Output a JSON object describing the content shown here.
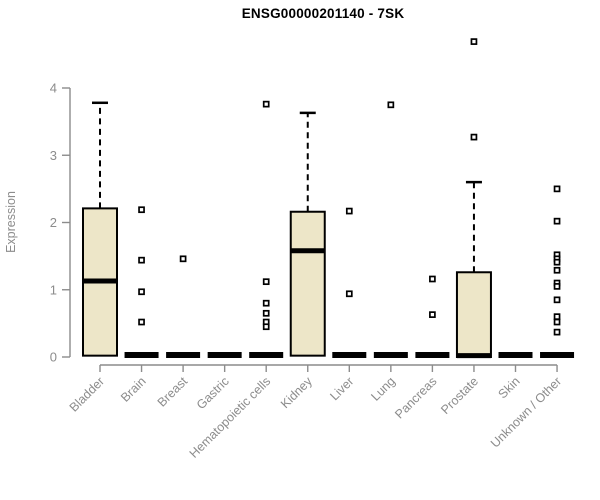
{
  "chart_data": {
    "type": "boxplot",
    "title": "ENSG00000201140 - 7SK",
    "ylabel": "Expression",
    "xlabel": "",
    "ylim": [
      0,
      4
    ],
    "yticks": [
      0,
      1,
      2,
      3,
      4
    ],
    "grid": false,
    "legend": "none",
    "categories": [
      "Bladder",
      "Brain",
      "Breast",
      "Gastric",
      "Hematopoietic cells",
      "Kidney",
      "Liver",
      "Lung",
      "Pancreas",
      "Prostate",
      "Skin",
      "Unknown / Other"
    ],
    "boxes": [
      {
        "category": "Bladder",
        "q1": 0.02,
        "median": 1.13,
        "q3": 2.21,
        "whisker_low": 0.02,
        "whisker_high": 3.78,
        "outliers": []
      },
      {
        "category": "Brain",
        "q1": 0,
        "median": 0,
        "q3": 0,
        "whisker_low": 0,
        "whisker_high": 0,
        "outliers": [
          2.19,
          1.44,
          0.97,
          0.52
        ]
      },
      {
        "category": "Breast",
        "q1": 0,
        "median": 0,
        "q3": 0,
        "whisker_low": 0,
        "whisker_high": 0,
        "outliers": [
          1.46
        ]
      },
      {
        "category": "Gastric",
        "q1": 0,
        "median": 0,
        "q3": 0,
        "whisker_low": 0,
        "whisker_high": 0,
        "outliers": []
      },
      {
        "category": "Hematopoietic cells",
        "q1": 0,
        "median": 0,
        "q3": 0,
        "whisker_low": 0,
        "whisker_high": 0,
        "outliers": [
          3.76,
          1.12,
          0.8,
          0.65,
          0.52,
          0.45
        ]
      },
      {
        "category": "Kidney",
        "q1": 0.02,
        "median": 1.58,
        "q3": 2.16,
        "whisker_low": 0.02,
        "whisker_high": 3.63,
        "outliers": []
      },
      {
        "category": "Liver",
        "q1": 0,
        "median": 0,
        "q3": 0,
        "whisker_low": 0,
        "whisker_high": 0,
        "outliers": [
          2.17,
          0.94
        ]
      },
      {
        "category": "Lung",
        "q1": 0,
        "median": 0,
        "q3": 0,
        "whisker_low": 0,
        "whisker_high": 0,
        "outliers": [
          3.75
        ]
      },
      {
        "category": "Pancreas",
        "q1": 0,
        "median": 0,
        "q3": 0,
        "whisker_low": 0,
        "whisker_high": 0,
        "outliers": [
          1.16,
          0.63
        ]
      },
      {
        "category": "Prostate",
        "q1": 0,
        "median": 0.02,
        "q3": 1.26,
        "whisker_low": 0,
        "whisker_high": 2.6,
        "outliers": [
          4.69,
          3.27
        ]
      },
      {
        "category": "Skin",
        "q1": 0,
        "median": 0,
        "q3": 0,
        "whisker_low": 0,
        "whisker_high": 0,
        "outliers": []
      },
      {
        "category": "Unknown / Other",
        "q1": 0,
        "median": 0,
        "q3": 0,
        "whisker_low": 0,
        "whisker_high": 0,
        "outliers": [
          2.5,
          2.02,
          1.52,
          1.46,
          1.41,
          1.29,
          1.1,
          1.05,
          0.85,
          0.6,
          0.52,
          0.37
        ]
      }
    ],
    "colors": {
      "box_fill": "#EDE6C8",
      "box_stroke": "#000000",
      "median": "#000000",
      "whisker": "#000000",
      "outlier_stroke": "#000000",
      "outlier_fill": "#FFFFFF",
      "axis": "#8C8C8C",
      "tick_label": "#8C8C8C",
      "title": "#000000",
      "background": "#FFFFFF"
    }
  }
}
